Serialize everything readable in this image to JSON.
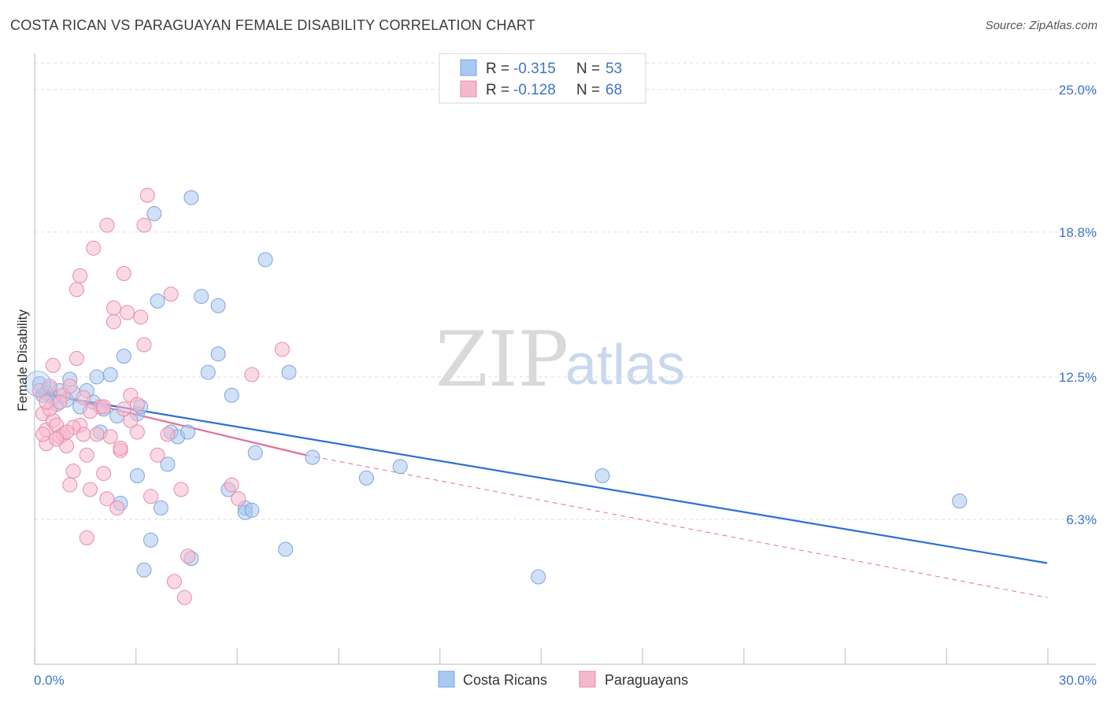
{
  "title": "COSTA RICAN VS PARAGUAYAN FEMALE DISABILITY CORRELATION CHART",
  "source": "Source: ZipAtlas.com",
  "watermark": {
    "zip": "ZIP",
    "atlas": "atlas"
  },
  "colors": {
    "blue": "#2f6fd1",
    "blue_fill": "#aac8f0",
    "pink": "#e3709a",
    "pink_fill": "#f5b9cd",
    "tick_text": "#3d74c7",
    "grid": "#dddddd"
  },
  "legend": {
    "rows": [
      {
        "r_label": "R = ",
        "r_value": "-0.315",
        "n_label": "N = ",
        "n_value": "53"
      },
      {
        "r_label": "R = ",
        "r_value": "-0.128",
        "n_label": "N = ",
        "n_value": "68"
      }
    ],
    "bottom": [
      "Costa Ricans",
      "Paraguayans"
    ]
  },
  "chart_data": {
    "type": "scatter",
    "title": "COSTA RICAN VS PARAGUAYAN FEMALE DISABILITY CORRELATION CHART",
    "xlabel": "",
    "ylabel": "Female Disability",
    "xlim": [
      0,
      30
    ],
    "ylim": [
      0,
      26.5
    ],
    "x_tick_labels": [
      "0.0%",
      "30.0%"
    ],
    "y_ticks": [
      6.3,
      12.5,
      18.8,
      25.0
    ],
    "y_tick_labels": [
      "6.3%",
      "12.5%",
      "18.8%",
      "25.0%"
    ],
    "grid": true,
    "legend_position": "top-center",
    "series": [
      {
        "name": "Costa Ricans",
        "r": -0.315,
        "n": 53,
        "trend": {
          "x": [
            0,
            30
          ],
          "y": [
            11.8,
            4.4
          ],
          "style": "solid"
        },
        "points": [
          [
            0.1,
            12.2
          ],
          [
            0.3,
            11.8
          ],
          [
            0.4,
            12.0
          ],
          [
            0.5,
            11.6
          ],
          [
            0.6,
            11.3
          ],
          [
            0.7,
            11.9
          ],
          [
            0.9,
            11.5
          ],
          [
            1.0,
            12.4
          ],
          [
            1.1,
            11.8
          ],
          [
            1.3,
            11.2
          ],
          [
            1.5,
            11.9
          ],
          [
            1.7,
            11.4
          ],
          [
            1.8,
            12.5
          ],
          [
            1.9,
            10.1
          ],
          [
            2.0,
            11.1
          ],
          [
            2.2,
            12.6
          ],
          [
            2.4,
            10.8
          ],
          [
            2.6,
            13.4
          ],
          [
            2.5,
            7.0
          ],
          [
            3.0,
            10.9
          ],
          [
            3.1,
            11.2
          ],
          [
            3.0,
            8.2
          ],
          [
            3.2,
            4.1
          ],
          [
            3.4,
            5.4
          ],
          [
            3.5,
            19.6
          ],
          [
            3.6,
            15.8
          ],
          [
            3.7,
            6.8
          ],
          [
            3.9,
            8.7
          ],
          [
            4.0,
            10.1
          ],
          [
            4.2,
            9.9
          ],
          [
            4.5,
            10.1
          ],
          [
            4.6,
            20.3
          ],
          [
            4.6,
            4.6
          ],
          [
            4.9,
            16.0
          ],
          [
            5.1,
            12.7
          ],
          [
            5.4,
            15.6
          ],
          [
            5.4,
            13.5
          ],
          [
            5.7,
            7.6
          ],
          [
            5.8,
            11.7
          ],
          [
            6.2,
            6.8
          ],
          [
            6.2,
            6.6
          ],
          [
            6.4,
            6.7
          ],
          [
            6.5,
            9.2
          ],
          [
            6.8,
            17.6
          ],
          [
            7.4,
            5.0
          ],
          [
            7.5,
            12.7
          ],
          [
            8.2,
            9.0
          ],
          [
            9.8,
            8.1
          ],
          [
            10.8,
            8.6
          ],
          [
            14.9,
            3.8
          ],
          [
            16.8,
            8.2
          ],
          [
            27.4,
            7.1
          ],
          [
            0.2,
            11.7
          ]
        ]
      },
      {
        "name": "Paraguayans",
        "r": -0.128,
        "n": 68,
        "trend": {
          "x": [
            0,
            8.0
          ],
          "y": [
            11.9,
            9.1
          ],
          "style": "solid",
          "extended": {
            "x": [
              8.0,
              30
            ],
            "y": [
              9.1,
              2.9
            ],
            "style": "dashed"
          }
        },
        "points": [
          [
            0.1,
            11.9
          ],
          [
            0.2,
            10.9
          ],
          [
            0.3,
            10.2
          ],
          [
            0.3,
            9.6
          ],
          [
            0.4,
            12.1
          ],
          [
            0.5,
            10.6
          ],
          [
            0.5,
            13.0
          ],
          [
            0.6,
            10.4
          ],
          [
            0.7,
            9.9
          ],
          [
            0.8,
            11.7
          ],
          [
            0.8,
            10.0
          ],
          [
            0.9,
            9.5
          ],
          [
            1.0,
            12.1
          ],
          [
            1.0,
            7.8
          ],
          [
            1.1,
            8.4
          ],
          [
            1.2,
            16.3
          ],
          [
            1.2,
            13.3
          ],
          [
            1.3,
            16.9
          ],
          [
            1.3,
            10.4
          ],
          [
            1.4,
            10.0
          ],
          [
            1.5,
            9.1
          ],
          [
            1.5,
            5.5
          ],
          [
            1.6,
            7.6
          ],
          [
            1.7,
            18.1
          ],
          [
            1.8,
            10.0
          ],
          [
            1.9,
            11.2
          ],
          [
            2.0,
            8.3
          ],
          [
            2.1,
            19.1
          ],
          [
            2.1,
            7.2
          ],
          [
            2.3,
            15.5
          ],
          [
            2.3,
            14.9
          ],
          [
            2.4,
            6.8
          ],
          [
            2.5,
            9.3
          ],
          [
            2.5,
            9.4
          ],
          [
            2.6,
            17.0
          ],
          [
            2.7,
            15.3
          ],
          [
            2.8,
            10.6
          ],
          [
            2.8,
            11.7
          ],
          [
            3.0,
            11.3
          ],
          [
            3.1,
            15.1
          ],
          [
            3.2,
            13.9
          ],
          [
            3.2,
            19.1
          ],
          [
            3.3,
            20.4
          ],
          [
            3.4,
            7.3
          ],
          [
            3.6,
            9.1
          ],
          [
            3.9,
            10.0
          ],
          [
            4.0,
            16.1
          ],
          [
            4.1,
            3.6
          ],
          [
            4.3,
            7.6
          ],
          [
            4.4,
            2.9
          ],
          [
            4.5,
            4.7
          ],
          [
            5.8,
            7.8
          ],
          [
            6.0,
            7.2
          ],
          [
            6.4,
            12.6
          ],
          [
            7.3,
            13.7
          ],
          [
            0.4,
            11.1
          ],
          [
            0.7,
            11.4
          ],
          [
            1.1,
            10.3
          ],
          [
            2.0,
            11.2
          ],
          [
            0.2,
            10.0
          ],
          [
            0.9,
            10.1
          ],
          [
            1.6,
            11.0
          ],
          [
            2.2,
            9.9
          ],
          [
            0.6,
            9.8
          ],
          [
            1.4,
            11.6
          ],
          [
            2.6,
            11.1
          ],
          [
            3.0,
            10.1
          ],
          [
            0.3,
            11.4
          ]
        ]
      }
    ]
  }
}
